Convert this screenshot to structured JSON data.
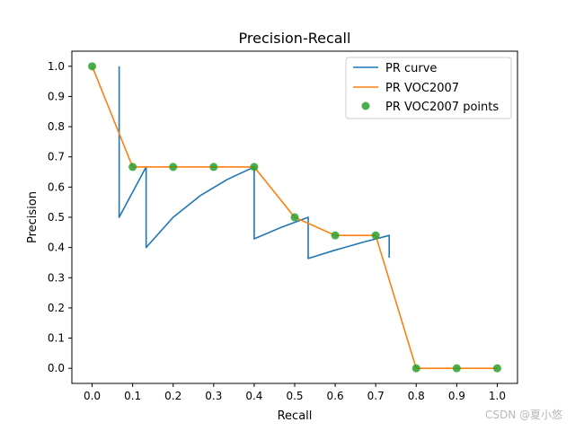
{
  "chart_data": {
    "type": "line",
    "title": "Precision-Recall",
    "xlabel": "Recall",
    "ylabel": "Precision",
    "xlim": [
      -0.05,
      1.05
    ],
    "ylim": [
      -0.05,
      1.05
    ],
    "x_ticks": [
      0.0,
      0.1,
      0.2,
      0.3,
      0.4,
      0.5,
      0.6,
      0.7,
      0.8,
      0.9,
      1.0
    ],
    "x_tick_labels": [
      "0.0",
      "0.1",
      "0.2",
      "0.3",
      "0.4",
      "0.5",
      "0.6",
      "0.7",
      "0.8",
      "0.9",
      "1.0"
    ],
    "y_ticks": [
      0.0,
      0.1,
      0.2,
      0.3,
      0.4,
      0.5,
      0.6,
      0.7,
      0.8,
      0.9,
      1.0
    ],
    "y_tick_labels": [
      "0.0",
      "0.1",
      "0.2",
      "0.3",
      "0.4",
      "0.5",
      "0.6",
      "0.7",
      "0.8",
      "0.9",
      "1.0"
    ],
    "grid": false,
    "legend_position": "top-right",
    "series": [
      {
        "name": "PR curve",
        "kind": "line",
        "color": "#1f77b4",
        "x": [
          0.0667,
          0.0667,
          0.1333,
          0.1333,
          0.2,
          0.2667,
          0.3333,
          0.4,
          0.4,
          0.4667,
          0.5333,
          0.5333,
          0.6,
          0.6667,
          0.7333,
          0.7333
        ],
        "y": [
          1.0,
          0.5,
          0.6667,
          0.4,
          0.5,
          0.5714,
          0.625,
          0.6667,
          0.4286,
          0.4667,
          0.5,
          0.3636,
          0.3913,
          0.4167,
          0.44,
          0.3667
        ]
      },
      {
        "name": "PR VOC2007",
        "kind": "line",
        "color": "#ff7f0e",
        "x": [
          0.0,
          0.1,
          0.2,
          0.3,
          0.4,
          0.5,
          0.6,
          0.7,
          0.8,
          0.9,
          1.0
        ],
        "y": [
          1.0,
          0.6667,
          0.6667,
          0.6667,
          0.6667,
          0.5,
          0.44,
          0.44,
          0.0,
          0.0,
          0.0
        ]
      },
      {
        "name": "PR VOC2007 points",
        "kind": "scatter",
        "color": "#2ca02c",
        "x": [
          0.0,
          0.1,
          0.2,
          0.3,
          0.4,
          0.5,
          0.6,
          0.7,
          0.8,
          0.9,
          1.0
        ],
        "y": [
          1.0,
          0.6667,
          0.6667,
          0.6667,
          0.6667,
          0.5,
          0.44,
          0.44,
          0.0,
          0.0,
          0.0
        ]
      }
    ]
  },
  "watermark": "CSDN @夏小悠"
}
